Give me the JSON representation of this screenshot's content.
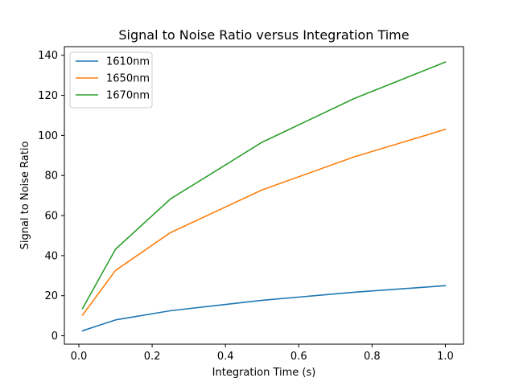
{
  "chart_data": {
    "type": "line",
    "title": "Signal to Noise Ratio versus Integration Time",
    "xlabel": "Integration Time (s)",
    "ylabel": "Signal to Noise Ratio",
    "xlim": [
      -0.0395,
      1.0495
    ],
    "ylim": [
      -4.2,
      144.3
    ],
    "xticks": [
      0.0,
      0.2,
      0.4,
      0.6,
      0.8,
      1.0
    ],
    "xtick_labels": [
      "0.0",
      "0.2",
      "0.4",
      "0.6",
      "0.8",
      "1.0"
    ],
    "yticks": [
      0,
      20,
      40,
      60,
      80,
      100,
      120,
      140
    ],
    "ytick_labels": [
      "0",
      "20",
      "40",
      "60",
      "80",
      "100",
      "120",
      "140"
    ],
    "grid": false,
    "legend_position": "top-left",
    "x": [
      0.01,
      0.1,
      0.25,
      0.5,
      0.75,
      1.0
    ],
    "series": [
      {
        "name": "1610nm",
        "color": "#1f77b4",
        "values": [
          2.5,
          7.9,
          12.5,
          17.7,
          21.7,
          25.0
        ]
      },
      {
        "name": "1650nm",
        "color": "#ff7f0e",
        "values": [
          10.3,
          32.6,
          51.5,
          72.8,
          89.2,
          103.0
        ]
      },
      {
        "name": "1670nm",
        "color": "#2ca02c",
        "values": [
          13.6,
          43.2,
          68.3,
          96.6,
          118.3,
          136.6
        ]
      }
    ]
  }
}
